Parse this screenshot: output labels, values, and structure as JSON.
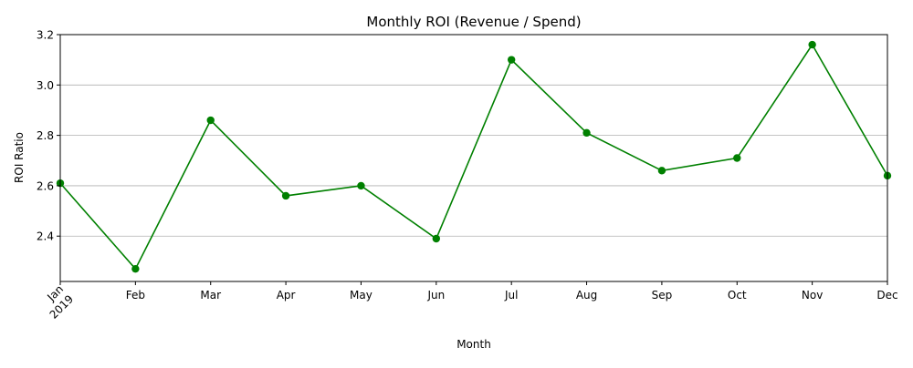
{
  "chart_data": {
    "type": "line",
    "title": "Monthly ROI (Revenue / Spend)",
    "xlabel": "Month",
    "ylabel": "ROI Ratio",
    "categories": [
      "Jan",
      "Feb",
      "Mar",
      "Apr",
      "May",
      "Jun",
      "Jul",
      "Aug",
      "Sep",
      "Oct",
      "Nov",
      "Dec"
    ],
    "year_label": "2019",
    "series": [
      {
        "values": [
          2.61,
          2.27,
          2.86,
          2.56,
          2.6,
          2.39,
          3.1,
          2.81,
          2.66,
          2.71,
          3.16,
          2.64
        ]
      }
    ],
    "ylim": [
      2.22,
      3.2
    ],
    "yticks": [
      2.4,
      2.6,
      2.8,
      3.0,
      3.2
    ],
    "ytick_labels": [
      "2.4",
      "2.6",
      "2.8",
      "3.0",
      "3.2"
    ],
    "grid": "y-major",
    "line_color": "#008000",
    "marker": "circle"
  }
}
